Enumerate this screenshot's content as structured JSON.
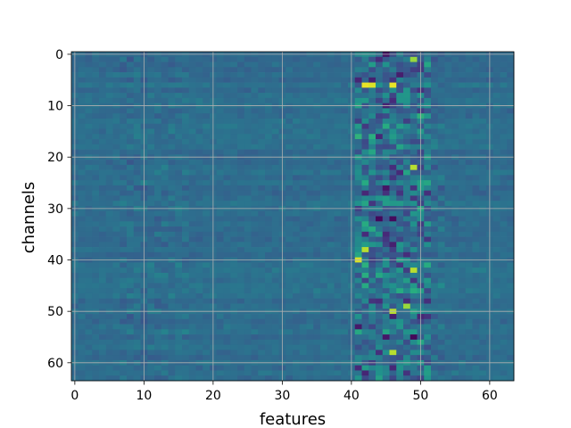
{
  "chart_data": {
    "type": "heatmap",
    "xlabel": "features",
    "ylabel": "channels",
    "x_ticks": [
      0,
      10,
      20,
      30,
      40,
      50,
      60
    ],
    "y_ticks": [
      0,
      10,
      20,
      30,
      40,
      50,
      60
    ],
    "x_range": [
      -0.5,
      63.5
    ],
    "y_range": [
      63.5,
      -0.5
    ],
    "n_rows": 64,
    "n_cols": 64,
    "colormap": "viridis",
    "grid": true,
    "seed": 7,
    "highlights": [
      {
        "row": 6,
        "col": 42,
        "value": 0.97
      },
      {
        "row": 6,
        "col": 43,
        "value": 0.95
      },
      {
        "row": 6,
        "col": 46,
        "value": 0.97
      },
      {
        "row": 1,
        "col": 49,
        "value": 0.85
      },
      {
        "row": 22,
        "col": 49,
        "value": 0.9
      },
      {
        "row": 38,
        "col": 42,
        "value": 0.9
      },
      {
        "row": 40,
        "col": 41,
        "value": 0.95
      },
      {
        "row": 42,
        "col": 49,
        "value": 0.9
      },
      {
        "row": 49,
        "col": 48,
        "value": 0.85
      },
      {
        "row": 50,
        "col": 46,
        "value": 0.9
      },
      {
        "row": 58,
        "col": 46,
        "value": 0.9
      },
      {
        "row": 32,
        "col": 44,
        "value": 0.02
      },
      {
        "row": 32,
        "col": 46,
        "value": 0.03
      }
    ]
  }
}
